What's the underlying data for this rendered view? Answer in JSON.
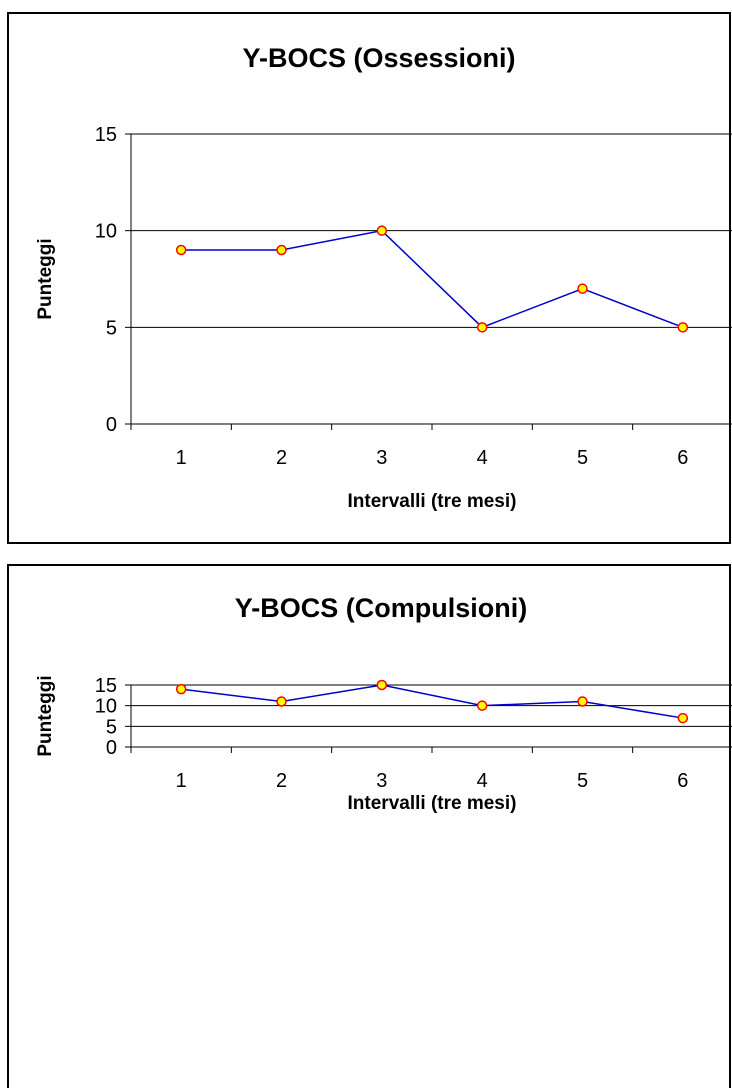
{
  "chart_data": [
    {
      "type": "line",
      "title": "Y-BOCS (Ossessioni)",
      "xlabel": "Intervalli (tre mesi)",
      "ylabel": "Punteggi",
      "categories": [
        "1",
        "2",
        "3",
        "4",
        "5",
        "6"
      ],
      "values": [
        9,
        9,
        10,
        5,
        7,
        5
      ],
      "ylim": [
        0,
        15
      ],
      "yticks": [
        0,
        5,
        10,
        15
      ],
      "grid": true,
      "line_color": "#0000cc",
      "marker_fill": "#ffff00",
      "marker_edge": "#ff0000"
    },
    {
      "type": "line",
      "title": "Y-BOCS (Compulsioni)",
      "xlabel": "Intervalli (tre mesi)",
      "ylabel": "Punteggi",
      "categories": [
        "1",
        "2",
        "3",
        "4",
        "5",
        "6"
      ],
      "values": [
        14,
        11,
        15,
        10,
        11,
        7
      ],
      "ylim": [
        0,
        15
      ],
      "yticks": [
        0,
        5,
        10,
        15
      ],
      "grid": true,
      "line_color": "#0000cc",
      "marker_fill": "#ffff00",
      "marker_edge": "#ff0000"
    }
  ]
}
